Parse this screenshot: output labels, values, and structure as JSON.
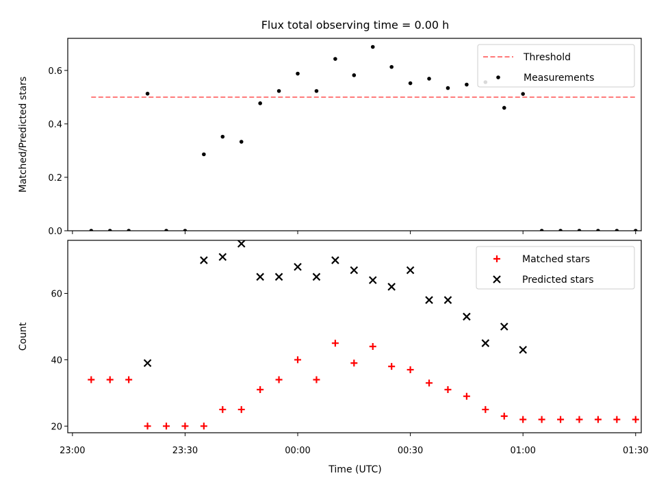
{
  "chart_data": {
    "title": "Flux total observing time = 0.00 h",
    "xlabel": "Time (UTC)",
    "x_tick_labels": [
      "23:00",
      "23:30",
      "00:00",
      "00:30",
      "01:00",
      "01:30"
    ],
    "x_ticks_minutes": [
      0,
      30,
      60,
      90,
      120,
      150
    ],
    "x_minutes": [
      5,
      10,
      15,
      20,
      25,
      30,
      35,
      40,
      45,
      50,
      55,
      60,
      65,
      70,
      75,
      80,
      85,
      90,
      95,
      100,
      105,
      110,
      115,
      120,
      125,
      130,
      135,
      140,
      145,
      150
    ],
    "panels": [
      {
        "type": "scatter",
        "ylabel": "Matched/Predicted stars",
        "ylim": [
          0,
          0.72
        ],
        "y_ticks": [
          0.0,
          0.2,
          0.4,
          0.6
        ],
        "y_tick_labels": [
          "0.0",
          "0.2",
          "0.4",
          "0.6"
        ],
        "legend": "top-right",
        "series": [
          {
            "name": "Threshold",
            "kind": "dashed-line",
            "color": "#ff7777",
            "x_range": [
              5,
              150
            ],
            "y": 0.5
          },
          {
            "name": "Measurements",
            "kind": "dot",
            "color": "#000000",
            "values": [
              0,
              0,
              0,
              0.513,
              0,
              0,
              0.286,
              0.352,
              0.333,
              0.477,
              0.523,
              0.588,
              0.523,
              0.643,
              0.582,
              0.688,
              0.613,
              0.552,
              0.569,
              0.534,
              0.547,
              0.556,
              0.46,
              0.512,
              0,
              0,
              0,
              0,
              0,
              0
            ]
          }
        ]
      },
      {
        "type": "scatter",
        "ylabel": "Count",
        "ylim": [
          18,
          76
        ],
        "y_ticks": [
          20,
          40,
          60
        ],
        "y_tick_labels": [
          "20",
          "40",
          "60"
        ],
        "legend": "top-right",
        "series": [
          {
            "name": "Matched stars",
            "kind": "plus",
            "color": "#ff0000",
            "values": [
              34,
              34,
              34,
              20,
              20,
              20,
              20,
              25,
              25,
              31,
              34,
              40,
              34,
              45,
              39,
              44,
              38,
              37,
              33,
              31,
              29,
              25,
              23,
              22,
              22,
              22,
              22,
              22,
              22,
              22
            ]
          },
          {
            "name": "Predicted stars",
            "kind": "cross",
            "color": "#000000",
            "values": [
              null,
              null,
              null,
              39,
              null,
              null,
              70,
              71,
              75,
              65,
              65,
              68,
              65,
              70,
              67,
              64,
              62,
              67,
              58,
              58,
              53,
              45,
              50,
              43,
              null,
              null,
              null,
              null,
              null,
              null
            ]
          }
        ]
      }
    ]
  }
}
